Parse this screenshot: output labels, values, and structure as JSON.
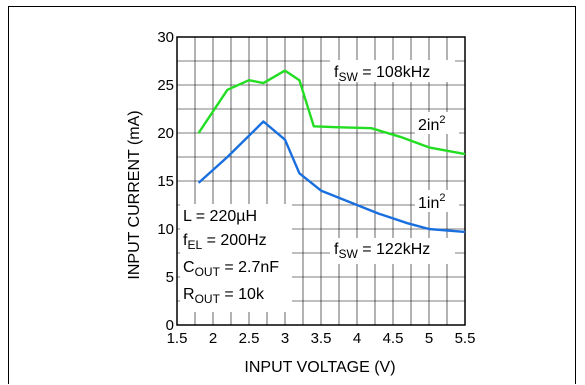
{
  "chart_data": {
    "type": "line",
    "xlabel": "INPUT VOLTAGE (V)",
    "ylabel": "INPUT CURRENT (mA)",
    "xlim": [
      1.5,
      5.5
    ],
    "ylim": [
      0,
      30
    ],
    "x_ticks": [
      "1.5",
      "2",
      "2.5",
      "3",
      "3.5",
      "4",
      "4.5",
      "5",
      "5.5"
    ],
    "y_ticks": [
      "0",
      "5",
      "10",
      "15",
      "20",
      "25",
      "30"
    ],
    "grid": true,
    "series": [
      {
        "name": "2in2",
        "color": "#22dd22",
        "x": [
          1.8,
          2.2,
          2.5,
          2.7,
          3.0,
          3.2,
          3.4,
          3.7,
          4.2,
          4.6,
          5.0,
          5.5
        ],
        "y": [
          20.0,
          24.5,
          25.5,
          25.2,
          26.5,
          25.5,
          20.7,
          20.6,
          20.5,
          19.6,
          18.5,
          17.8
        ]
      },
      {
        "name": "1in2",
        "color": "#1a6fdf",
        "x": [
          1.8,
          2.2,
          2.7,
          3.0,
          3.2,
          3.5,
          3.9,
          4.3,
          4.7,
          5.0,
          5.5
        ],
        "y": [
          14.8,
          17.5,
          21.2,
          19.3,
          15.8,
          14.0,
          12.8,
          11.6,
          10.6,
          10.0,
          9.7
        ]
      }
    ],
    "annotations": {
      "fsw_top_f": "f",
      "fsw_top_sub": "SW",
      "fsw_top_value": " = 108kHz",
      "area_2_main": "2in",
      "area_2_sup": "2",
      "area_1_main": "1in",
      "area_1_sup": "2",
      "fsw_bot_f": "f",
      "fsw_bot_sub": "SW",
      "fsw_bot_value": " = 122kHz",
      "cond_L": "L = 220µH",
      "cond_fel_f": "f",
      "cond_fel_sub": "EL",
      "cond_fel_value": " = 200Hz",
      "cond_cout_c": "C",
      "cond_cout_sub": "OUT",
      "cond_cout_value": " = 2.7nF",
      "cond_rout_r": "R",
      "cond_rout_sub": "OUT",
      "cond_rout_value": " = 10k"
    }
  }
}
